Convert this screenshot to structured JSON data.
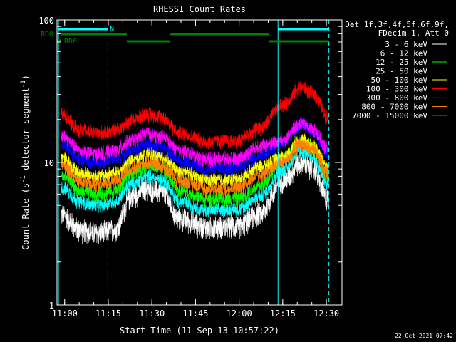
{
  "chart_data": {
    "type": "line",
    "title": "RHESSI Count Rates",
    "xlabel": "Start Time (11-Sep-13 10:57:22)",
    "ylabel": "Count Rate (s⁻¹ detector segment⁻¹)",
    "ylabel_main": "Count Rate (s",
    "ylabel_sup1": "-1",
    "ylabel_mid": " detector segment",
    "ylabel_sup2": "-1",
    "ylabel_end": ")",
    "yscale": "log",
    "ylim": [
      1,
      100
    ],
    "xlim_minutes": [
      0,
      98
    ],
    "x_ticks": [
      "11:00",
      "11:15",
      "11:30",
      "11:45",
      "12:00",
      "12:15",
      "12:30"
    ],
    "x_tick_minutes": [
      2.63,
      17.63,
      32.63,
      47.63,
      62.63,
      77.63,
      92.63
    ],
    "y_ticks": [
      "1",
      "10",
      "100"
    ],
    "y_tick_values": [
      1,
      10,
      100
    ],
    "grid": false,
    "legend_position": "right",
    "legend_header": [
      "Det 1f,3f,4f,5f,6f,9f,",
      "FDecim 1, Att 0"
    ],
    "date_stamp": "22-Oct-2021 07:42",
    "flags": {
      "rd0_label": "RD0",
      "rd6_label": "RD6",
      "n_label": "N",
      "n_segments_minutes": [
        [
          0.5,
          17.5
        ],
        [
          76.0,
          93.5
        ]
      ],
      "rd0_segments_minutes": [
        [
          1.5,
          24.0
        ],
        [
          39.0,
          73.0
        ]
      ],
      "rd6_segments_minutes": [
        [
          24.0,
          39.0
        ],
        [
          73.0,
          93.5
        ]
      ],
      "night_lines_minutes": [
        0.5,
        17.5,
        76.0,
        93.5
      ],
      "colors": {
        "n": "#00ffff",
        "rd": "#008000"
      }
    },
    "series": [
      {
        "name": "3 - 6 keV",
        "color": "#ffffff",
        "base": 3.2,
        "peak1": 6.5,
        "trough": 3.5,
        "peak2": 10.0,
        "end": 5.5
      },
      {
        "name": "6 - 12 keV",
        "color": "#ff00ff",
        "base": 11.5,
        "peak1": 16.0,
        "trough": 10.5,
        "peak2": 19.0,
        "end": 12.5
      },
      {
        "name": "12 - 25 keV",
        "color": "#00ff00",
        "base": 6.0,
        "peak1": 9.5,
        "trough": 5.5,
        "peak2": 14.0,
        "end": 8.0
      },
      {
        "name": "25 - 50 keV",
        "color": "#00ffff",
        "base": 5.0,
        "peak1": 8.0,
        "trough": 4.6,
        "peak2": 12.0,
        "end": 7.0
      },
      {
        "name": "50 - 100 keV",
        "color": "#ffff00",
        "base": 8.0,
        "peak1": 11.5,
        "trough": 7.5,
        "peak2": 14.5,
        "end": 9.5
      },
      {
        "name": "100 - 300 keV",
        "color": "#ff0000",
        "base": 16.0,
        "peak1": 22.0,
        "trough": 14.0,
        "peak2": 34.0,
        "end": 21.0
      },
      {
        "name": "300 - 800 keV",
        "color": "#0000ff",
        "base": 10.0,
        "peak1": 13.5,
        "trough": 9.0,
        "peak2": 18.5,
        "end": 11.5
      },
      {
        "name": "800 - 7000 keV",
        "color": "#ff8000",
        "base": 7.0,
        "peak1": 10.0,
        "trough": 6.5,
        "peak2": 13.5,
        "end": 8.5
      },
      {
        "name": "7000 - 15000 keV",
        "color": "#808000",
        "base": 0,
        "peak1": 0,
        "trough": 0,
        "peak2": 0,
        "end": 0
      }
    ]
  }
}
